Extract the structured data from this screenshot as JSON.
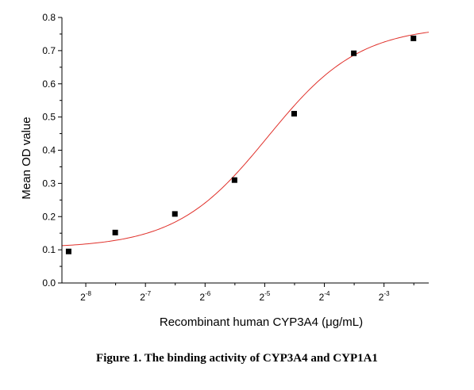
{
  "chart_data": {
    "type": "scatter",
    "xlabel": "Recombinant human CYP3A4 (μg/mL)",
    "ylabel": "Mean OD value",
    "x_scale": "log2",
    "xlim_exponent": [
      -8.4,
      -2.25
    ],
    "ylim": [
      0,
      0.8
    ],
    "y_ticks": [
      "0.0",
      "0.1",
      "0.2",
      "0.3",
      "0.4",
      "0.5",
      "0.6",
      "0.7",
      "0.8"
    ],
    "x_tick_exponents": [
      -8,
      -7,
      -6,
      -5,
      -4,
      -3
    ],
    "x_tick_base": "2",
    "x_tick_labels": [
      "-8",
      "-7",
      "-6",
      "-5",
      "-4",
      "-3"
    ],
    "grid": false,
    "series": [
      {
        "points": [
          {
            "x": 0.0032,
            "y": 0.095
          },
          {
            "x": 0.0055,
            "y": 0.152
          },
          {
            "x": 0.011,
            "y": 0.208
          },
          {
            "x": 0.022,
            "y": 0.31
          },
          {
            "x": 0.044,
            "y": 0.51
          },
          {
            "x": 0.088,
            "y": 0.692
          },
          {
            "x": 0.176,
            "y": 0.737
          }
        ],
        "marker_color": "#000000"
      }
    ],
    "fit_curve": {
      "type": "logistic",
      "color": "#e0302a",
      "bottom": 0.105,
      "top": 0.775,
      "ec50_log2": -4.95,
      "hill_slope_log2": 1.3
    }
  },
  "caption": "Figure 1. The binding activity of CYP3A4 and CYP1A1"
}
